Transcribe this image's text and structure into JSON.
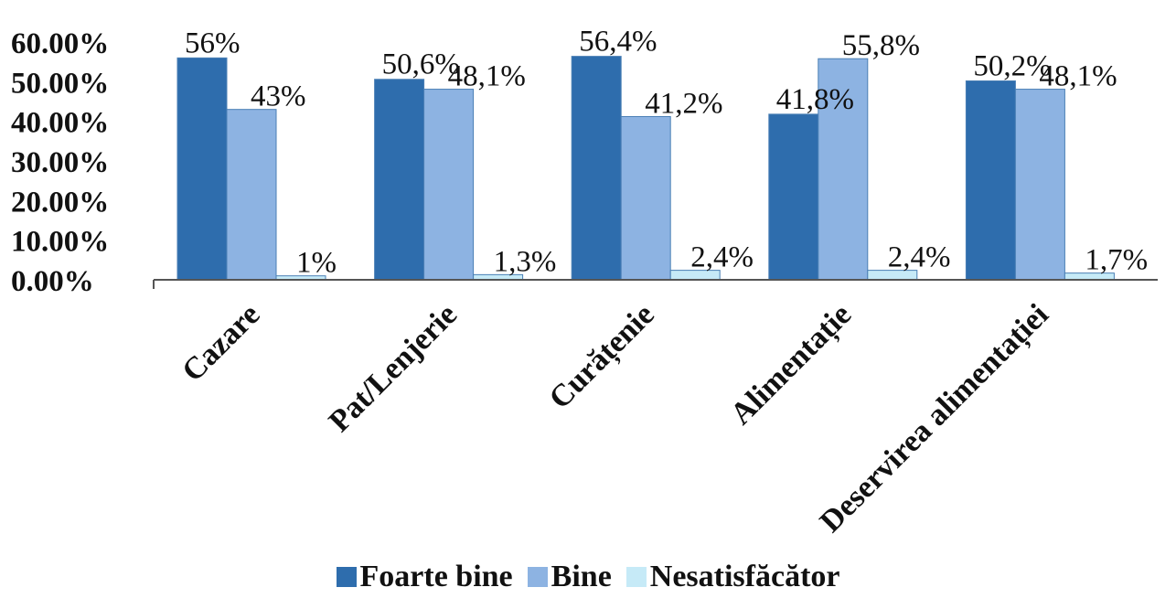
{
  "chart_data": {
    "type": "bar",
    "categories": [
      "Cazare",
      "Pat/Lenjerie",
      "Curățenie",
      "Alimentație",
      "Deservirea alimentației"
    ],
    "series": [
      {
        "name": "Foarte bine",
        "values": [
          0.56,
          0.506,
          0.564,
          0.418,
          0.502
        ],
        "labels": [
          "56%",
          "50,6%",
          "56,4%",
          "41,8%",
          "50,2%"
        ],
        "color": "#2E6DAD"
      },
      {
        "name": "Bine",
        "values": [
          0.43,
          0.481,
          0.412,
          0.558,
          0.481
        ],
        "labels": [
          "43%",
          "48,1%",
          "41,2%",
          "55,8%",
          "48,1%"
        ],
        "color": "#8DB3E2"
      },
      {
        "name": "Nesatisfăcător",
        "values": [
          0.01,
          0.013,
          0.024,
          0.024,
          0.017
        ],
        "labels": [
          "1%",
          "1,3%",
          "2,4%",
          "2,4%",
          "1,7%"
        ],
        "color": "#C6EAF7"
      }
    ],
    "yticks": [
      "0.00%",
      "10.00%",
      "20.00%",
      "30.00%",
      "40.00%",
      "50.00%",
      "60.00%"
    ],
    "ylim": [
      0,
      0.6
    ],
    "grid": false,
    "legend_position": "bottom"
  }
}
